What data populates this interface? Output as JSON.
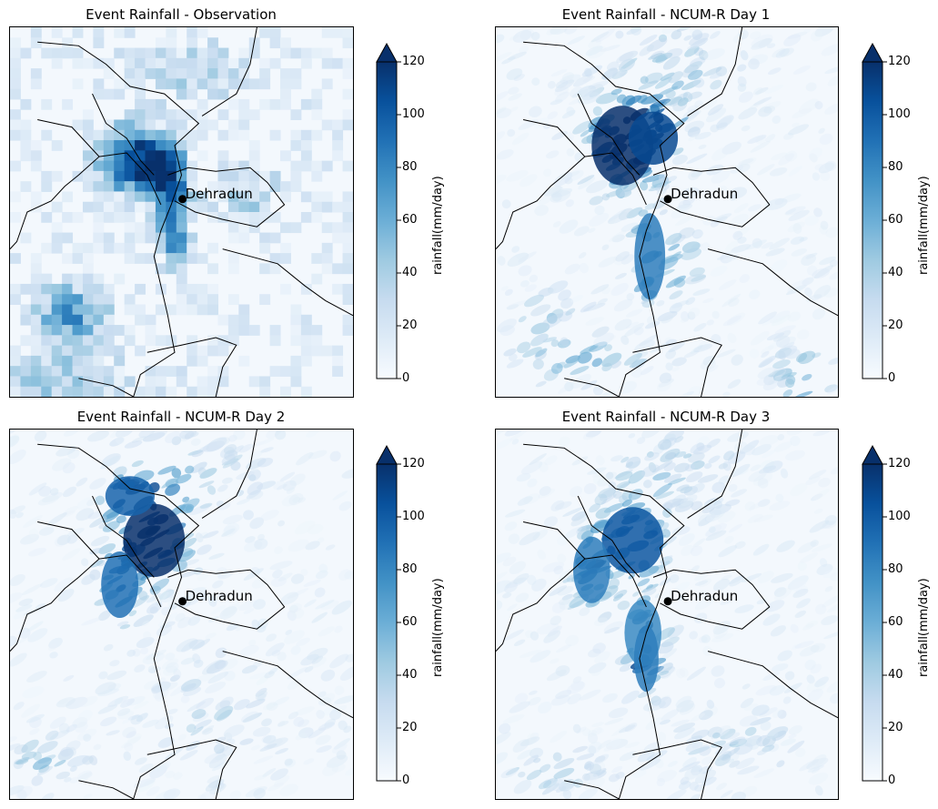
{
  "figure": {
    "colormap": "Blues",
    "colors": {
      "low": "#f7fbff",
      "mid": "#6aaed6",
      "high": "#08306b",
      "border": "#000000",
      "marker": "#000000"
    }
  },
  "panels": [
    {
      "id": "observation",
      "title": "Event Rainfall - Observation",
      "style": "grid"
    },
    {
      "id": "day1",
      "title": "Event Rainfall - NCUM-R Day 1",
      "style": "smooth"
    },
    {
      "id": "day2",
      "title": "Event Rainfall - NCUM-R Day 2",
      "style": "smooth"
    },
    {
      "id": "day3",
      "title": "Event Rainfall - NCUM-R Day 3",
      "style": "smooth"
    }
  ],
  "marker": {
    "label": "Dehradun"
  },
  "colorbar": {
    "label": "rainfall(mm/day)",
    "ticks": [
      "0",
      "20",
      "40",
      "60",
      "80",
      "100",
      "120"
    ],
    "range": [
      0,
      120
    ],
    "extend": "max"
  }
}
